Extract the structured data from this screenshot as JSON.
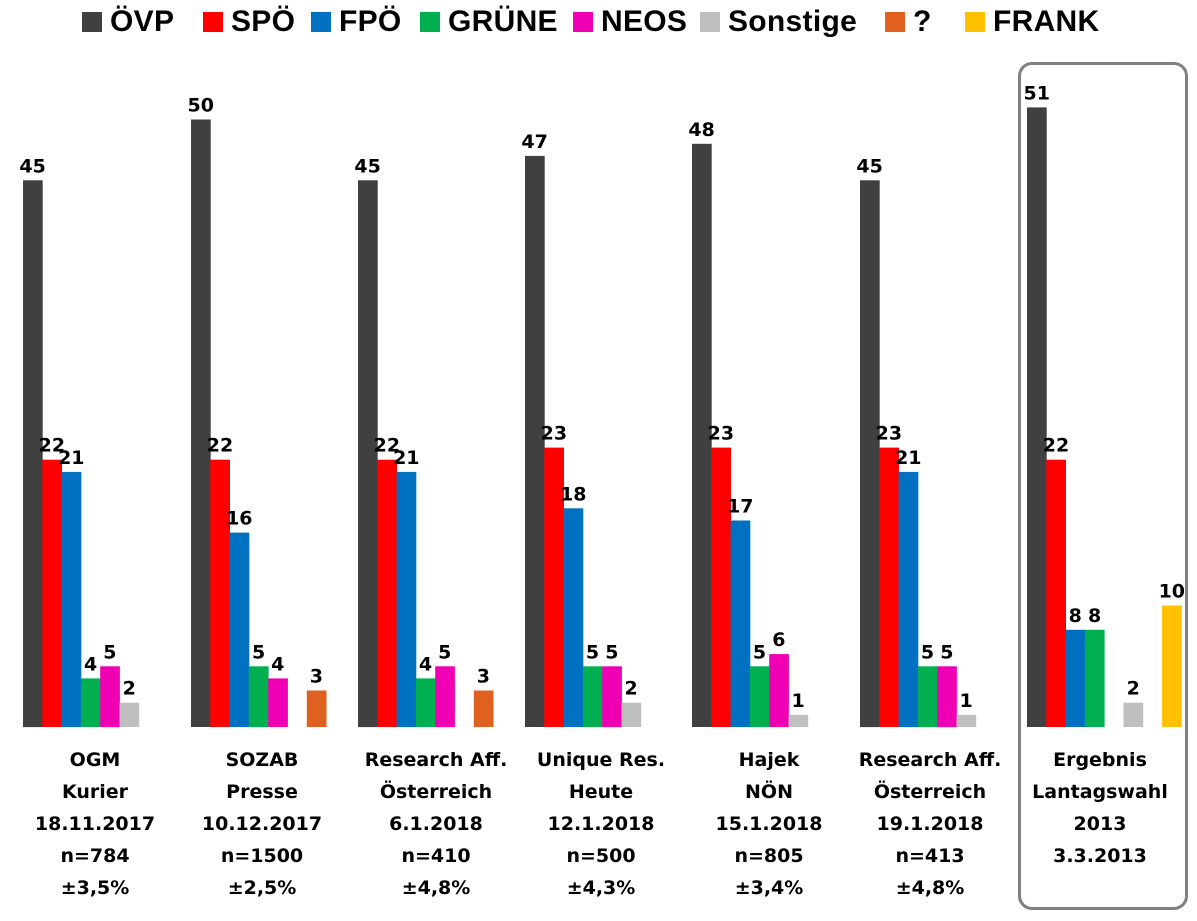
{
  "legend": [
    {
      "name": "ÖVP",
      "color": "#404040"
    },
    {
      "name": "SPÖ",
      "color": "#FF0000"
    },
    {
      "name": "FPÖ",
      "color": "#0070C0"
    },
    {
      "name": "GRÜNE",
      "color": "#00B050"
    },
    {
      "name": "NEOS",
      "color": "#F000B4"
    },
    {
      "name": "Sonstige",
      "color": "#BFBFBF"
    },
    {
      "name": "?",
      "color": "#E06020"
    },
    {
      "name": "FRANK",
      "color": "#FFC000"
    }
  ],
  "chart_data": {
    "type": "bar",
    "title": "",
    "xlabel": "",
    "ylabel": "",
    "ylim": [
      0,
      55
    ],
    "grid": false,
    "legend_position": "top",
    "categories": [
      {
        "lines": [
          "OGM",
          "Kurier",
          "18.11.2017",
          "n=784",
          "±3,5%"
        ]
      },
      {
        "lines": [
          "SOZAB",
          "Presse",
          "10.12.2017",
          "n=1500",
          "±2,5%"
        ]
      },
      {
        "lines": [
          "Research Aff.",
          "Österreich",
          "6.1.2018",
          "n=410",
          "±4,8%"
        ]
      },
      {
        "lines": [
          "Unique Res.",
          "Heute",
          "12.1.2018",
          "n=500",
          "±4,3%"
        ]
      },
      {
        "lines": [
          "Hajek",
          "NÖN",
          "15.1.2018",
          "n=805",
          "±3,4%"
        ]
      },
      {
        "lines": [
          "Research Aff.",
          "Österreich",
          "19.1.2018",
          "n=413",
          "±4,8%"
        ]
      },
      {
        "lines": [
          "Ergebnis",
          "Lantagswahl",
          "2013",
          "3.3.2013"
        ],
        "highlighted": true
      }
    ],
    "series": [
      {
        "name": "ÖVP",
        "color": "#404040",
        "values": [
          45,
          50,
          45,
          47,
          48,
          45,
          51
        ]
      },
      {
        "name": "SPÖ",
        "color": "#FF0000",
        "values": [
          22,
          22,
          22,
          23,
          23,
          23,
          22
        ]
      },
      {
        "name": "FPÖ",
        "color": "#0070C0",
        "values": [
          21,
          16,
          21,
          18,
          17,
          21,
          8
        ]
      },
      {
        "name": "GRÜNE",
        "color": "#00B050",
        "values": [
          4,
          5,
          4,
          5,
          5,
          5,
          8
        ]
      },
      {
        "name": "NEOS",
        "color": "#F000B4",
        "values": [
          5,
          4,
          5,
          5,
          6,
          5,
          null
        ]
      },
      {
        "name": "Sonstige",
        "color": "#BFBFBF",
        "values": [
          2,
          null,
          null,
          2,
          1,
          1,
          2
        ]
      },
      {
        "name": "?",
        "color": "#E06020",
        "values": [
          null,
          3,
          3,
          null,
          null,
          null,
          null
        ]
      },
      {
        "name": "FRANK",
        "color": "#FFC000",
        "values": [
          null,
          null,
          null,
          null,
          null,
          null,
          10
        ]
      }
    ]
  }
}
